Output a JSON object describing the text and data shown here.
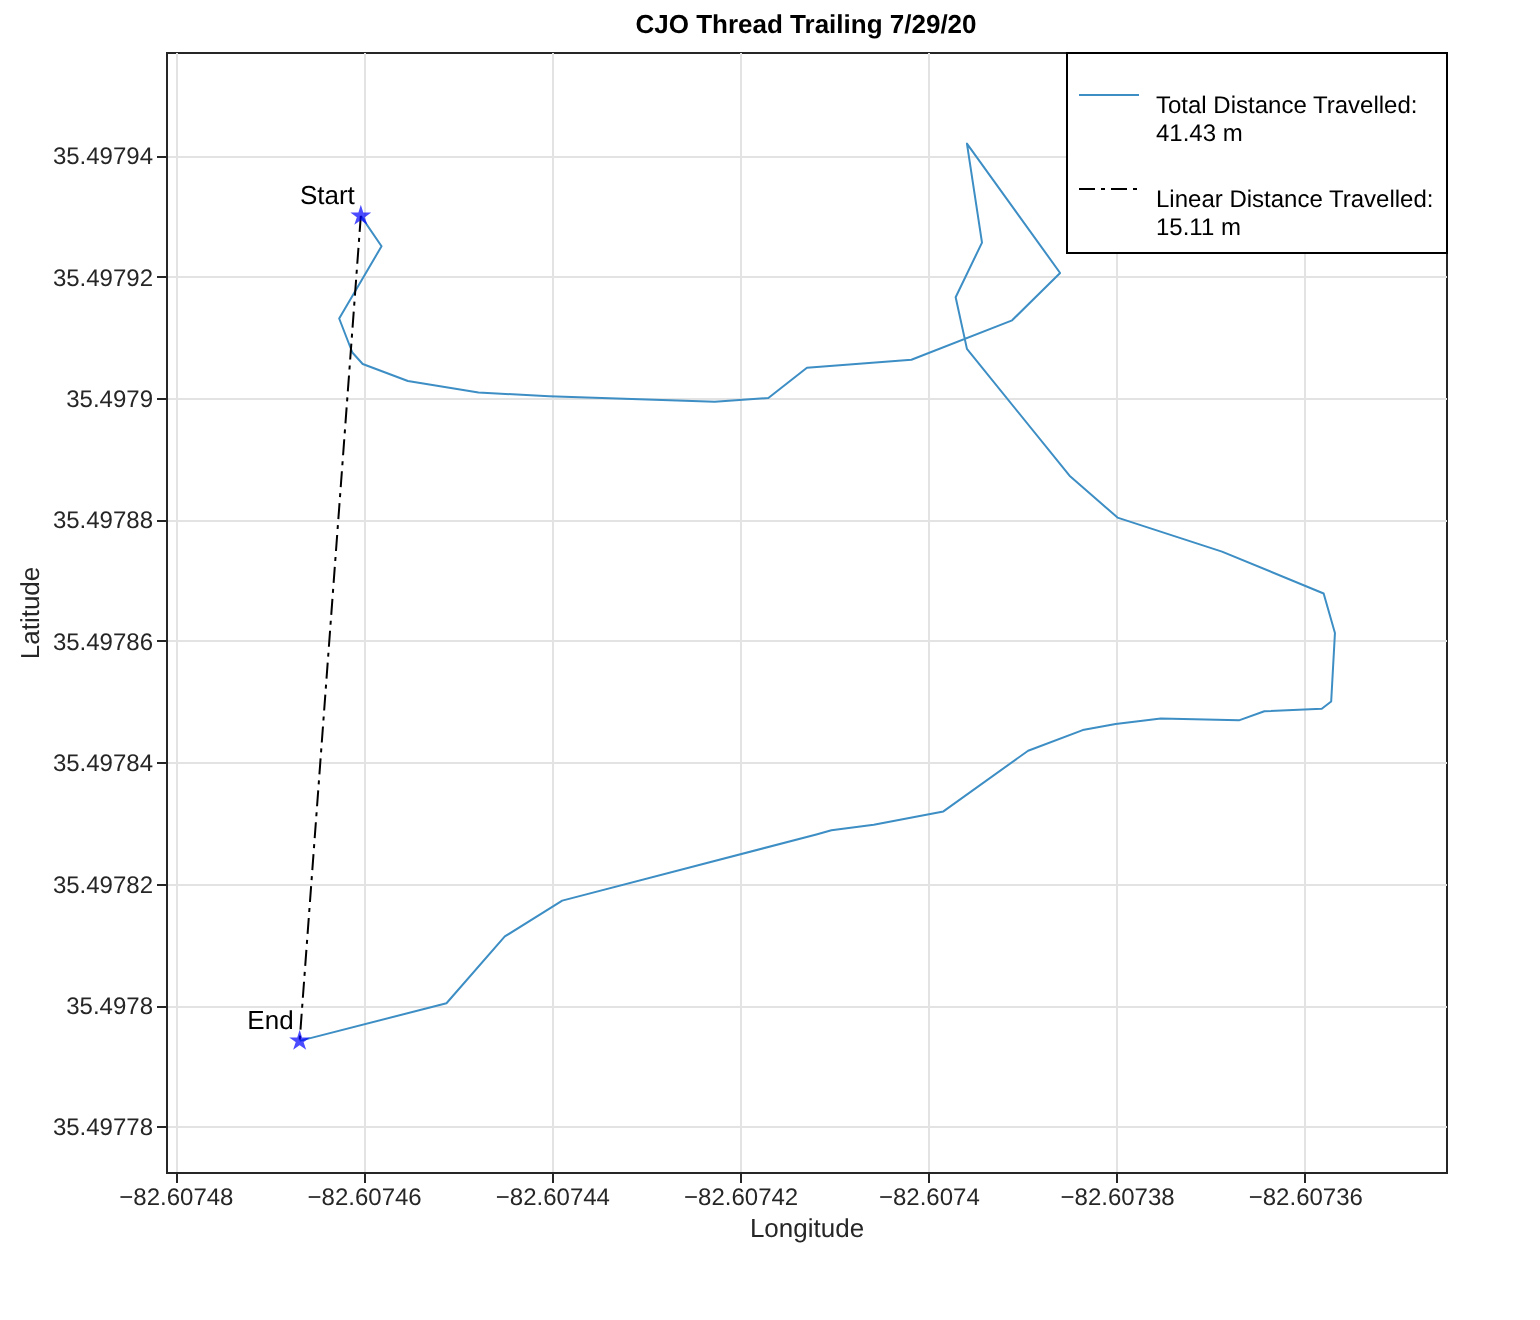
{
  "chart_data": {
    "type": "line",
    "title": "CJO Thread Trailing 7/29/20",
    "xlabel": "Longitude",
    "ylabel": "Latitude",
    "xlim": [
      -82.607481,
      -82.607345
    ],
    "ylim": [
      35.4977725,
      35.497957
    ],
    "xticks": [
      -82.60748,
      -82.60746,
      -82.60744,
      -82.60742,
      -82.6074,
      -82.60738,
      -82.60736
    ],
    "yticks": [
      35.49778,
      35.4978,
      35.49782,
      35.49784,
      35.49786,
      35.49788,
      35.4979,
      35.49792,
      35.49794
    ],
    "grid": true,
    "legend": "top right",
    "annotations": [
      {
        "text": "Start",
        "x": -82.6074603,
        "y": 35.49793
      },
      {
        "text": "End",
        "x": -82.6074668,
        "y": 35.4977941
      }
    ],
    "series": [
      {
        "name": "Total Distance Travelled:\n 41.43 m",
        "type": "line",
        "color": "#3d8ec4",
        "line_style": "solid",
        "x": [
          -82.6074603,
          -82.6074581,
          -82.6074626,
          -82.6074612,
          -82.6074601,
          -82.6074553,
          -82.6074478,
          -82.6074403,
          -82.6074227,
          -82.607417,
          -82.6074129,
          -82.6074018,
          -82.6073911,
          -82.607386,
          -82.6073959,
          -82.6073943,
          -82.6073971,
          -82.6073959,
          -82.607385,
          -82.6073799,
          -82.6073688,
          -82.607358,
          -82.6073568,
          -82.6073572,
          -82.6073582,
          -82.6073643,
          -82.607367,
          -82.6073753,
          -82.6073801,
          -82.6073836,
          -82.6073894,
          -82.6073984,
          -82.6074058,
          -82.6074103,
          -82.6074119,
          -82.6074389,
          -82.607445,
          -82.6074512,
          -82.6074668
        ],
        "values": [
          35.49793,
          35.497925,
          35.4979131,
          35.4979075,
          35.4979056,
          35.4979028,
          35.4979009,
          35.4979003,
          35.4978994,
          35.4979,
          35.497905,
          35.4979063,
          35.4979128,
          35.4979206,
          35.4979419,
          35.4979256,
          35.4979166,
          35.4979081,
          35.4978872,
          35.4978803,
          35.4978747,
          35.4978678,
          35.4978613,
          35.49785,
          35.4978488,
          35.4978484,
          35.4978469,
          35.4978472,
          35.4978463,
          35.4978453,
          35.4978419,
          35.4978319,
          35.4978297,
          35.4978288,
          35.4978281,
          35.4978172,
          35.4978113,
          35.4978003,
          35.4977941
        ]
      },
      {
        "name": "Linear Distance Travelled:\n 15.11 m",
        "type": "line",
        "color": "#000000",
        "line_style": "dashed",
        "x": [
          -82.6074603,
          -82.6074668
        ],
        "values": [
          35.49793,
          35.4977941
        ]
      },
      {
        "type": "scatter",
        "color": "#0000ff",
        "marker": "star",
        "x": [
          -82.6074603,
          -82.6074668
        ],
        "values": [
          35.49793,
          35.4977941
        ]
      }
    ]
  }
}
